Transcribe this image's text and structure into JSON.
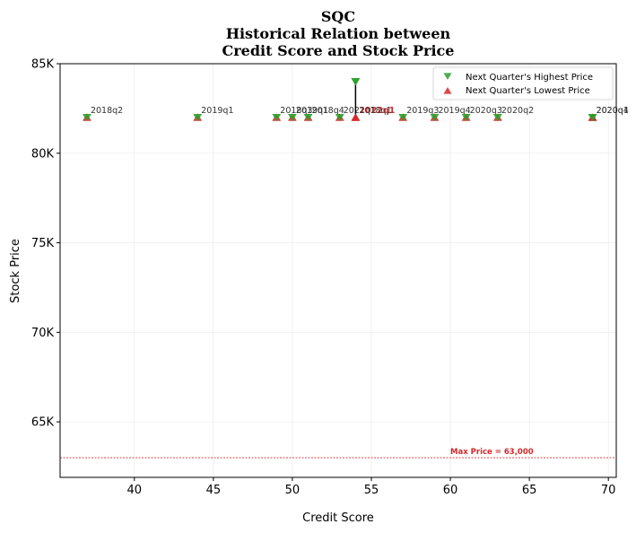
{
  "chart_data": {
    "type": "scatter",
    "title_lines": [
      "SQC",
      "Historical Relation between",
      "Credit Score and Stock Price"
    ],
    "xlabel": "Credit Score",
    "ylabel": "Stock Price",
    "xlim": [
      35.3,
      70.5
    ],
    "ylim": [
      61900,
      85000
    ],
    "x_ticks": [
      40,
      45,
      50,
      55,
      60,
      65,
      70
    ],
    "y_ticks": [
      65000,
      70000,
      75000,
      80000,
      85000
    ],
    "y_tick_labels": [
      "65K",
      "70K",
      "75K",
      "80K",
      "85K"
    ],
    "grid": true,
    "legend_position": "top-right",
    "series": [
      {
        "name": "Next Quarter's Highest Price",
        "marker": "triangle-down",
        "color": "#2ca02c"
      },
      {
        "name": "Next Quarter's Lowest Price",
        "marker": "triangle-up",
        "color": "#d62728"
      }
    ],
    "points": [
      {
        "label": "2018q2",
        "x": 37,
        "high": 82000,
        "low": 82000,
        "highlight": false
      },
      {
        "label": "2019q1",
        "x": 44,
        "high": 82000,
        "low": 82000,
        "highlight": false
      },
      {
        "label": "2018q3",
        "x": 49,
        "high": 82000,
        "low": 82000,
        "highlight": false
      },
      {
        "label": "2019q1",
        "x": 50,
        "high": 82000,
        "low": 82000,
        "highlight": false
      },
      {
        "label": "2018q4",
        "x": 51,
        "high": 82000,
        "low": 82000,
        "highlight": false
      },
      {
        "label": "2021q1",
        "x": 53,
        "high": 82000,
        "low": 82000,
        "highlight": false
      },
      {
        "label": "2022q1",
        "x": 54,
        "high": 84000,
        "low": 82000,
        "highlight": true
      },
      {
        "label": "2018q1",
        "x": 54,
        "high": 84000,
        "low": 82000,
        "highlight": false
      },
      {
        "label": "2019q3",
        "x": 57,
        "high": 82000,
        "low": 82000,
        "highlight": false
      },
      {
        "label": "2019q4",
        "x": 59,
        "high": 82000,
        "low": 82000,
        "highlight": false
      },
      {
        "label": "2020q3",
        "x": 61,
        "high": 82000,
        "low": 82000,
        "highlight": false
      },
      {
        "label": "2020q2",
        "x": 63,
        "high": 82000,
        "low": 82000,
        "highlight": false
      },
      {
        "label": "2020q1",
        "x": 69,
        "high": 82000,
        "low": 82000,
        "highlight": false
      },
      {
        "label": "2020q4",
        "x": 69,
        "high": 82000,
        "low": 82000,
        "highlight": false
      }
    ],
    "reference_line": {
      "value": 63000,
      "label": "Max Price = 63,000",
      "color": "#d62728"
    }
  }
}
